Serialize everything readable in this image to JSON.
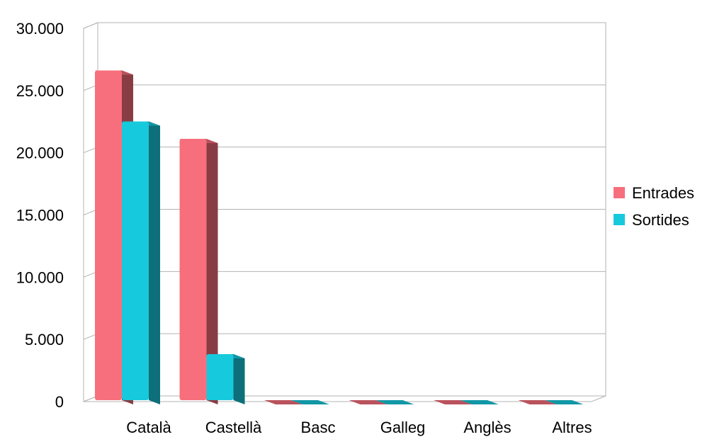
{
  "chart_data": {
    "type": "bar",
    "categories": [
      "Català",
      "Castellà",
      "Basc",
      "Galleg",
      "Anglès",
      "Altres"
    ],
    "series": [
      {
        "name": "Entrades",
        "color": "#f76f7c",
        "values": [
          26500,
          21000,
          0,
          0,
          0,
          0
        ]
      },
      {
        "name": "Sortides",
        "color": "#17c9dc",
        "values": [
          22400,
          3700,
          0,
          0,
          0,
          0
        ]
      }
    ],
    "ylim": [
      0,
      30000
    ],
    "yticks": [
      "0",
      "5.000",
      "10.000",
      "15.000",
      "20.000",
      "25.000",
      "30.000"
    ],
    "grid": true,
    "legend_position": "right",
    "style": "3d"
  }
}
